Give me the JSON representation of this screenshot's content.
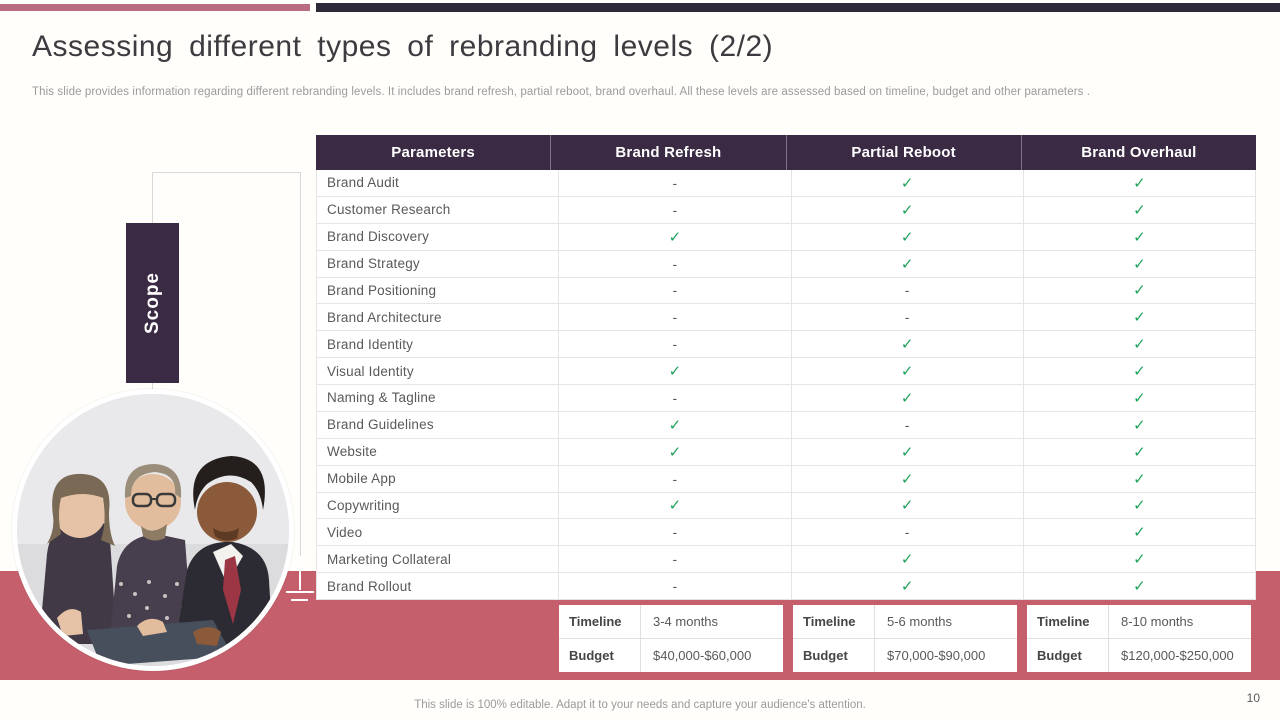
{
  "slide": {
    "title": "Assessing different types of rebranding levels (2/2)",
    "subtitle": "This slide provides information regarding different rebranding levels. It includes brand refresh, partial reboot, brand overhaul. All these levels are assessed based on timeline, budget and other parameters .",
    "side_label": "Scope",
    "footer": "This slide is 100% editable. Adapt it to your needs and capture your audience's attention.",
    "page_number": "10"
  },
  "colors": {
    "accent_rose": "#c55f6b",
    "accent_rose_light": "#b96b80",
    "dark_purple": "#3b2a44",
    "dark_navy": "#2e2939",
    "check_green": "#21a25b"
  },
  "table": {
    "headers": [
      "Parameters",
      "Brand Refresh",
      "Partial Reboot",
      "Brand Overhaul"
    ],
    "check_glyph": "✓",
    "dash_glyph": "-",
    "rows": [
      {
        "parameter": "Brand Audit",
        "brand_refresh": "-",
        "partial_reboot": "✓",
        "brand_overhaul": "✓"
      },
      {
        "parameter": "Customer Research",
        "brand_refresh": "-",
        "partial_reboot": "✓",
        "brand_overhaul": "✓"
      },
      {
        "parameter": "Brand Discovery",
        "brand_refresh": "✓",
        "partial_reboot": "✓",
        "brand_overhaul": "✓"
      },
      {
        "parameter": "Brand Strategy",
        "brand_refresh": "-",
        "partial_reboot": "✓",
        "brand_overhaul": "✓"
      },
      {
        "parameter": "Brand Positioning",
        "brand_refresh": "-",
        "partial_reboot": "-",
        "brand_overhaul": "✓"
      },
      {
        "parameter": "Brand Architecture",
        "brand_refresh": "-",
        "partial_reboot": "-",
        "brand_overhaul": "✓"
      },
      {
        "parameter": "Brand Identity",
        "brand_refresh": "-",
        "partial_reboot": "✓",
        "brand_overhaul": "✓"
      },
      {
        "parameter": "Visual Identity",
        "brand_refresh": "✓",
        "partial_reboot": "✓",
        "brand_overhaul": "✓"
      },
      {
        "parameter": "Naming & Tagline",
        "brand_refresh": "-",
        "partial_reboot": "✓",
        "brand_overhaul": "✓"
      },
      {
        "parameter": "Brand Guidelines",
        "brand_refresh": "✓",
        "partial_reboot": "-",
        "brand_overhaul": "✓"
      },
      {
        "parameter": "Website",
        "brand_refresh": "✓",
        "partial_reboot": "✓",
        "brand_overhaul": "✓"
      },
      {
        "parameter": "Mobile App",
        "brand_refresh": "-",
        "partial_reboot": "✓",
        "brand_overhaul": "✓"
      },
      {
        "parameter": "Copywriting",
        "brand_refresh": "✓",
        "partial_reboot": "✓",
        "brand_overhaul": "✓"
      },
      {
        "parameter": "Video",
        "brand_refresh": "-",
        "partial_reboot": "-",
        "brand_overhaul": "✓"
      },
      {
        "parameter": "Marketing Collateral",
        "brand_refresh": "-",
        "partial_reboot": "✓",
        "brand_overhaul": "✓"
      },
      {
        "parameter": "Brand Rollout",
        "brand_refresh": "-",
        "partial_reboot": "✓",
        "brand_overhaul": "✓"
      }
    ]
  },
  "info_boxes": [
    {
      "rows": [
        {
          "label": "Timeline",
          "value": "3-4 months"
        },
        {
          "label": "Budget",
          "value": "$40,000-$60,000"
        }
      ]
    },
    {
      "rows": [
        {
          "label": "Timeline",
          "value": "5-6 months"
        },
        {
          "label": "Budget",
          "value": "$70,000-$90,000"
        }
      ]
    },
    {
      "rows": [
        {
          "label": "Timeline",
          "value": "8-10 months"
        },
        {
          "label": "Budget",
          "value": "$120,000-$250,000"
        }
      ]
    }
  ]
}
